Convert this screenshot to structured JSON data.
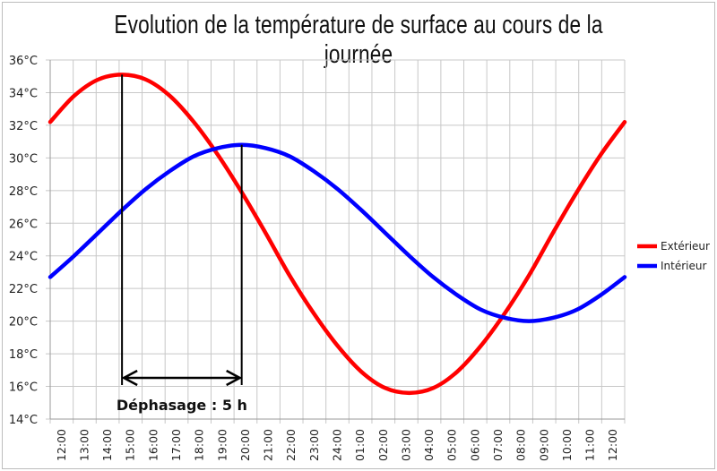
{
  "chart_data": {
    "type": "line",
    "title": "Evolution de la température de surface au cours de la journée",
    "xlabel": "",
    "ylabel": "",
    "categories": [
      "12:00",
      "13:00",
      "14:00",
      "15:00",
      "16:00",
      "17:00",
      "18:00",
      "19:00",
      "20:00",
      "21:00",
      "22:00",
      "23:00",
      "24:00",
      "01:00",
      "02:00",
      "03:00",
      "04:00",
      "05:00",
      "06:00",
      "07:00",
      "08:00",
      "09:00",
      "10:00",
      "11:00",
      "12:00"
    ],
    "yticks": [
      "14°C",
      "16°C",
      "18°C",
      "20°C",
      "22°C",
      "24°C",
      "26°C",
      "28°C",
      "30°C",
      "32°C",
      "34°C",
      "36°C"
    ],
    "ylim": [
      14,
      36
    ],
    "grid": true,
    "legend_position": "right",
    "series": [
      {
        "name": "Extérieur",
        "color": "#ff0000",
        "values": [
          32.2,
          33.8,
          34.8,
          35.1,
          34.8,
          33.8,
          32.2,
          30.2,
          27.9,
          25.4,
          22.8,
          20.5,
          18.5,
          16.9,
          15.9,
          15.6,
          15.9,
          16.9,
          18.5,
          20.5,
          22.8,
          25.4,
          27.9,
          30.2,
          32.2
        ]
      },
      {
        "name": "Intérieur",
        "color": "#0000ff",
        "values": [
          22.7,
          24.0,
          25.4,
          26.8,
          28.1,
          29.2,
          30.1,
          30.6,
          30.8,
          30.6,
          30.1,
          29.2,
          28.1,
          26.8,
          25.4,
          24.0,
          22.7,
          21.6,
          20.7,
          20.2,
          20.0,
          20.2,
          20.7,
          21.6,
          22.7
        ]
      }
    ],
    "annotation": {
      "label": "Déphasage : 5 h",
      "from": "15:00",
      "to": "20:00"
    }
  }
}
